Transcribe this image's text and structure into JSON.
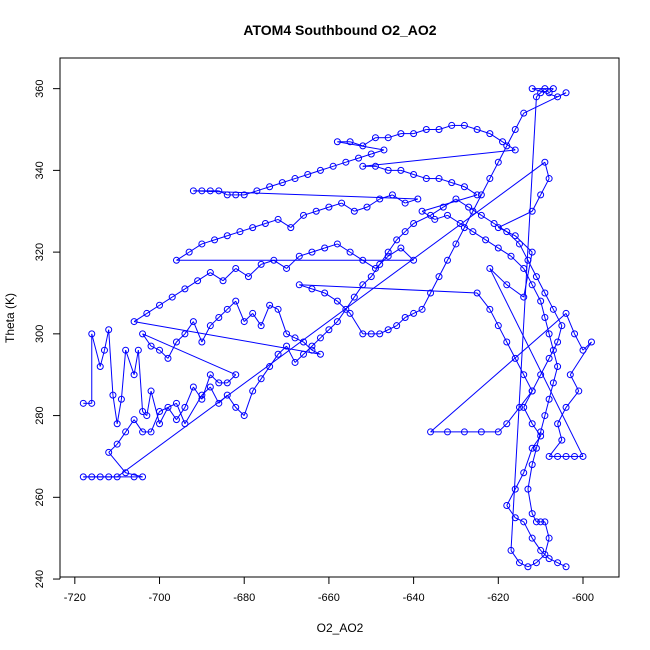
{
  "chart_data": {
    "type": "scatter",
    "title": "ATOM4 Southbound O2_AO2",
    "xlabel": "O2_AO2",
    "ylabel": "Theta (K)",
    "xlim": [
      -723.5,
      -591.5
    ],
    "ylim": [
      240.5,
      367.5
    ],
    "xticks": [
      -720,
      -700,
      -680,
      -660,
      -640,
      -620,
      -600
    ],
    "yticks": [
      240,
      260,
      280,
      300,
      320,
      340,
      360
    ],
    "grid": false,
    "legend": "none",
    "marker": "open-circle",
    "lines_connecting_points": true,
    "series": [
      {
        "color": "#0000ff",
        "points": [
          [
            -718,
            283
          ],
          [
            -716,
            283
          ],
          [
            -716,
            300
          ],
          [
            -714,
            292
          ],
          [
            -713,
            296
          ],
          [
            -712,
            301
          ],
          [
            -711,
            285
          ],
          [
            -710,
            278
          ],
          [
            -709,
            284
          ],
          [
            -708,
            296
          ],
          [
            -706,
            290
          ],
          [
            -705,
            296
          ],
          [
            -704,
            281
          ],
          [
            -703,
            280
          ],
          [
            -702,
            286
          ],
          [
            -700,
            278
          ],
          [
            -698,
            282
          ],
          [
            -696,
            279
          ],
          [
            -694,
            282
          ],
          [
            -692,
            287
          ],
          [
            -690,
            284
          ],
          [
            -688,
            290
          ],
          [
            -686,
            288
          ],
          [
            -684,
            288
          ],
          [
            -682,
            290
          ],
          [
            -704,
            300
          ],
          [
            -702,
            297
          ],
          [
            -700,
            296
          ],
          [
            -698,
            294
          ],
          [
            -696,
            298
          ],
          [
            -694,
            300
          ],
          [
            -692,
            303
          ],
          [
            -690,
            298
          ],
          [
            -688,
            302
          ],
          [
            -686,
            304
          ],
          [
            -684,
            306
          ],
          [
            -682,
            308
          ],
          [
            -680,
            303
          ],
          [
            -678,
            305
          ],
          [
            -676,
            302
          ],
          [
            -674,
            307
          ],
          [
            -672,
            306
          ],
          [
            -670,
            300
          ],
          [
            -668,
            299
          ],
          [
            -666,
            298
          ],
          [
            -664,
            296
          ],
          [
            -662,
            295
          ],
          [
            -706,
            303
          ],
          [
            -703,
            305
          ],
          [
            -700,
            307
          ],
          [
            -697,
            309
          ],
          [
            -694,
            311
          ],
          [
            -691,
            313
          ],
          [
            -688,
            315
          ],
          [
            -685,
            313
          ],
          [
            -682,
            316
          ],
          [
            -679,
            314
          ],
          [
            -676,
            317
          ],
          [
            -673,
            318
          ],
          [
            -670,
            316
          ],
          [
            -667,
            319
          ],
          [
            -664,
            320
          ],
          [
            -661,
            321
          ],
          [
            -658,
            322
          ],
          [
            -655,
            320
          ],
          [
            -652,
            318
          ],
          [
            -649,
            316
          ],
          [
            -646,
            319
          ],
          [
            -643,
            321
          ],
          [
            -640,
            318
          ],
          [
            -696,
            318
          ],
          [
            -693,
            320
          ],
          [
            -690,
            322
          ],
          [
            -687,
            323
          ],
          [
            -684,
            324
          ],
          [
            -681,
            325
          ],
          [
            -678,
            326
          ],
          [
            -675,
            327
          ],
          [
            -672,
            328
          ],
          [
            -669,
            326
          ],
          [
            -666,
            329
          ],
          [
            -663,
            330
          ],
          [
            -660,
            331
          ],
          [
            -657,
            332
          ],
          [
            -654,
            330
          ],
          [
            -651,
            331
          ],
          [
            -648,
            333
          ],
          [
            -645,
            334
          ],
          [
            -642,
            332
          ],
          [
            -639,
            333
          ],
          [
            -692,
            335
          ],
          [
            -690,
            335
          ],
          [
            -688,
            335
          ],
          [
            -686,
            335
          ],
          [
            -684,
            334
          ],
          [
            -682,
            334
          ],
          [
            -680,
            334
          ],
          [
            -677,
            335
          ],
          [
            -674,
            336
          ],
          [
            -671,
            337
          ],
          [
            -668,
            338
          ],
          [
            -665,
            339
          ],
          [
            -662,
            340
          ],
          [
            -659,
            341
          ],
          [
            -656,
            342
          ],
          [
            -653,
            343
          ],
          [
            -650,
            344
          ],
          [
            -647,
            345
          ],
          [
            -658,
            347
          ],
          [
            -655,
            347
          ],
          [
            -652,
            346
          ],
          [
            -649,
            348
          ],
          [
            -646,
            348
          ],
          [
            -643,
            349
          ],
          [
            -640,
            349
          ],
          [
            -637,
            350
          ],
          [
            -634,
            350
          ],
          [
            -631,
            351
          ],
          [
            -628,
            351
          ],
          [
            -625,
            350
          ],
          [
            -622,
            349
          ],
          [
            -619,
            347
          ],
          [
            -616,
            345
          ],
          [
            -652,
            341
          ],
          [
            -649,
            341
          ],
          [
            -646,
            340
          ],
          [
            -643,
            340
          ],
          [
            -640,
            339
          ],
          [
            -637,
            338
          ],
          [
            -634,
            338
          ],
          [
            -631,
            337
          ],
          [
            -628,
            336
          ],
          [
            -625,
            334
          ],
          [
            -638,
            330
          ],
          [
            -635,
            328
          ],
          [
            -632,
            329
          ],
          [
            -629,
            327
          ],
          [
            -626,
            325
          ],
          [
            -623,
            323
          ],
          [
            -620,
            321
          ],
          [
            -617,
            319
          ],
          [
            -614,
            316
          ],
          [
            -612,
            312
          ],
          [
            -610,
            308
          ],
          [
            -609,
            304
          ],
          [
            -608,
            300
          ],
          [
            -607,
            296
          ],
          [
            -606,
            292
          ],
          [
            -607,
            288
          ],
          [
            -608,
            284
          ],
          [
            -609,
            280
          ],
          [
            -610,
            276
          ],
          [
            -611,
            272
          ],
          [
            -612,
            268
          ],
          [
            -613,
            262
          ],
          [
            -612,
            256
          ],
          [
            -611,
            254
          ],
          [
            -610,
            254
          ],
          [
            -609,
            254
          ],
          [
            -608,
            250
          ],
          [
            -609,
            246
          ],
          [
            -611,
            244
          ],
          [
            -613,
            243
          ],
          [
            -615,
            244
          ],
          [
            -617,
            247
          ],
          [
            -611,
            358
          ],
          [
            -610,
            359
          ],
          [
            -609,
            360
          ],
          [
            -608,
            359
          ],
          [
            -607,
            360
          ],
          [
            -612,
            360
          ],
          [
            -606,
            358
          ],
          [
            -604,
            359
          ],
          [
            -614,
            354
          ],
          [
            -616,
            350
          ],
          [
            -618,
            346
          ],
          [
            -620,
            342
          ],
          [
            -622,
            338
          ],
          [
            -624,
            334
          ],
          [
            -626,
            330
          ],
          [
            -628,
            326
          ],
          [
            -630,
            322
          ],
          [
            -632,
            318
          ],
          [
            -634,
            314
          ],
          [
            -636,
            310
          ],
          [
            -638,
            306
          ],
          [
            -640,
            305
          ],
          [
            -642,
            304
          ],
          [
            -644,
            302
          ],
          [
            -646,
            301
          ],
          [
            -648,
            300
          ],
          [
            -650,
            300
          ],
          [
            -652,
            300
          ],
          [
            -655,
            305
          ],
          [
            -658,
            308
          ],
          [
            -661,
            310
          ],
          [
            -664,
            311
          ],
          [
            -667,
            312
          ],
          [
            -625,
            310
          ],
          [
            -622,
            306
          ],
          [
            -620,
            302
          ],
          [
            -618,
            298
          ],
          [
            -616,
            294
          ],
          [
            -614,
            290
          ],
          [
            -612,
            286
          ],
          [
            -615,
            282
          ],
          [
            -618,
            278
          ],
          [
            -620,
            276
          ],
          [
            -624,
            276
          ],
          [
            -628,
            276
          ],
          [
            -632,
            276
          ],
          [
            -636,
            276
          ],
          [
            -604,
            305
          ],
          [
            -602,
            300
          ],
          [
            -600,
            296
          ],
          [
            -598,
            298
          ],
          [
            -603,
            290
          ],
          [
            -601,
            286
          ],
          [
            -604,
            282
          ],
          [
            -606,
            278
          ],
          [
            -605,
            274
          ],
          [
            -608,
            270
          ],
          [
            -606,
            270
          ],
          [
            -604,
            270
          ],
          [
            -602,
            270
          ],
          [
            -600,
            270
          ],
          [
            -622,
            316
          ],
          [
            -618,
            312
          ],
          [
            -614,
            309
          ],
          [
            -612,
            320
          ],
          [
            -616,
            324
          ],
          [
            -620,
            326
          ],
          [
            -612,
            330
          ],
          [
            -610,
            334
          ],
          [
            -608,
            338
          ],
          [
            -609,
            342
          ],
          [
            -710,
            265
          ],
          [
            -712,
            265
          ],
          [
            -714,
            265
          ],
          [
            -716,
            265
          ],
          [
            -718,
            265
          ],
          [
            -706,
            265
          ],
          [
            -704,
            265
          ],
          [
            -708,
            266
          ],
          [
            -712,
            271
          ],
          [
            -710,
            273
          ],
          [
            -708,
            276
          ],
          [
            -706,
            279
          ],
          [
            -704,
            276
          ],
          [
            -702,
            276
          ],
          [
            -700,
            281
          ],
          [
            -696,
            283
          ],
          [
            -694,
            278
          ],
          [
            -690,
            285
          ],
          [
            -688,
            287
          ],
          [
            -686,
            283
          ],
          [
            -684,
            285
          ],
          [
            -682,
            282
          ],
          [
            -680,
            280
          ],
          [
            -678,
            286
          ],
          [
            -676,
            289
          ],
          [
            -674,
            292
          ],
          [
            -672,
            295
          ],
          [
            -670,
            297
          ],
          [
            -668,
            293
          ],
          [
            -666,
            295
          ],
          [
            -664,
            297
          ],
          [
            -662,
            299
          ],
          [
            -660,
            301
          ],
          [
            -658,
            303
          ],
          [
            -656,
            306
          ],
          [
            -654,
            309
          ],
          [
            -652,
            312
          ],
          [
            -650,
            314
          ],
          [
            -648,
            317
          ],
          [
            -646,
            320
          ],
          [
            -644,
            323
          ],
          [
            -642,
            325
          ],
          [
            -640,
            327
          ],
          [
            -636,
            329
          ],
          [
            -633,
            331
          ],
          [
            -630,
            333
          ],
          [
            -627,
            331
          ],
          [
            -624,
            329
          ],
          [
            -621,
            327
          ],
          [
            -618,
            325
          ],
          [
            -615,
            322
          ],
          [
            -613,
            318
          ],
          [
            -611,
            314
          ],
          [
            -609,
            310
          ],
          [
            -607,
            306
          ],
          [
            -605,
            302
          ],
          [
            -606,
            298
          ],
          [
            -608,
            294
          ],
          [
            -610,
            290
          ],
          [
            -612,
            286
          ],
          [
            -614,
            282
          ],
          [
            -612,
            278
          ],
          [
            -610,
            275
          ],
          [
            -612,
            272
          ],
          [
            -614,
            266
          ],
          [
            -616,
            262
          ],
          [
            -618,
            258
          ],
          [
            -616,
            255
          ],
          [
            -614,
            254
          ],
          [
            -612,
            250
          ],
          [
            -610,
            247
          ],
          [
            -608,
            245
          ],
          [
            -606,
            244
          ],
          [
            -604,
            243
          ]
        ]
      }
    ]
  }
}
